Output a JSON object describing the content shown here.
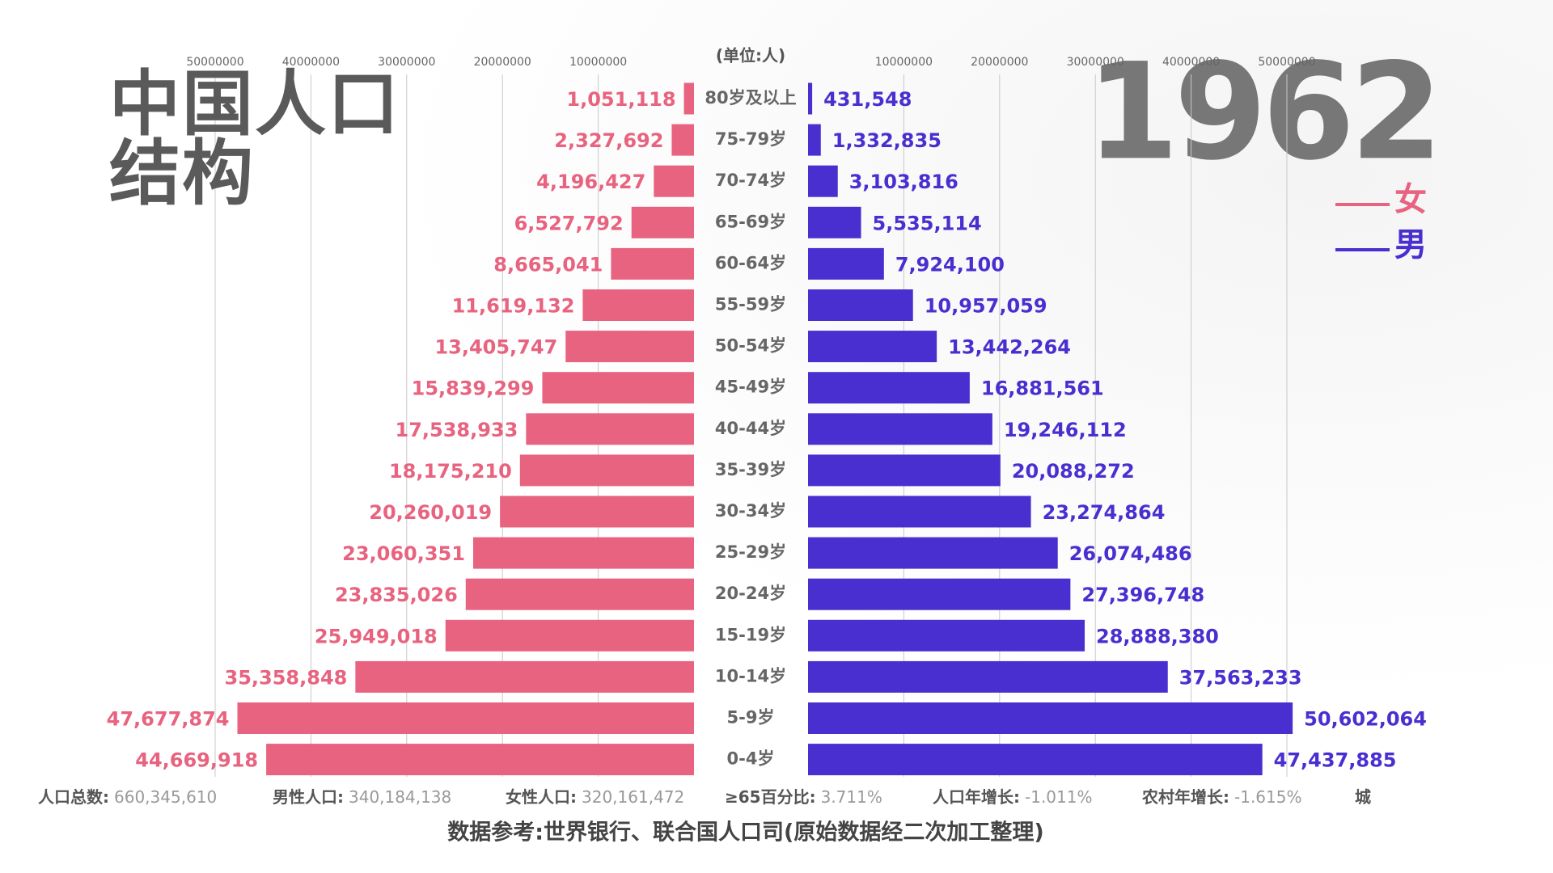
{
  "chart_data": {
    "type": "pyramid",
    "title": "中国人口结构",
    "year": "1962",
    "unit_label": "(单位:人)",
    "categories": [
      "80岁及以上",
      "75-79岁",
      "70-74岁",
      "65-69岁",
      "60-64岁",
      "55-59岁",
      "50-54岁",
      "45-49岁",
      "40-44岁",
      "35-39岁",
      "30-34岁",
      "25-29岁",
      "20-24岁",
      "15-19岁",
      "10-14岁",
      "5-9岁",
      "0-4岁"
    ],
    "series": [
      {
        "name": "女",
        "color": "#e8637f",
        "values": [
          1051118,
          2327692,
          4196427,
          6527792,
          8665041,
          11619132,
          13405747,
          15839299,
          17538933,
          18175210,
          20260019,
          23060351,
          23835026,
          25949018,
          35358848,
          47677874,
          44669918
        ],
        "value_labels": [
          "1,051,118",
          "2,327,692",
          "4,196,427",
          "6,527,792",
          "8,665,041",
          "11,619,132",
          "13,405,747",
          "15,839,299",
          "17,538,933",
          "18,175,210",
          "20,260,019",
          "23,060,351",
          "23,835,026",
          "25,949,018",
          "35,358,848",
          "47,677,874",
          "44,669,918"
        ]
      },
      {
        "name": "男",
        "color": "#4a2fd0",
        "values": [
          431548,
          1332835,
          3103816,
          5535114,
          7924100,
          10957059,
          13442264,
          16881561,
          19246112,
          20088272,
          23274864,
          26074486,
          27396748,
          28888380,
          37563233,
          50602064,
          47437885
        ],
        "value_labels": [
          "431,548",
          "1,332,835",
          "3,103,816",
          "5,535,114",
          "7,924,100",
          "10,957,059",
          "13,442,264",
          "16,881,561",
          "19,246,112",
          "20,088,272",
          "23,274,864",
          "26,074,486",
          "27,396,748",
          "28,888,380",
          "37,563,233",
          "50,602,064",
          "47,437,885"
        ]
      }
    ],
    "xlim": [
      0,
      50000000
    ],
    "xticks": [
      10000000,
      20000000,
      30000000,
      40000000,
      50000000
    ],
    "grid": true,
    "stats": [
      {
        "label": "人口总数:",
        "value": "660,345,610"
      },
      {
        "label": "男性人口:",
        "value": "340,184,138"
      },
      {
        "label": "女性人口:",
        "value": "320,161,472"
      },
      {
        "label": "≥65百分比:",
        "value": "3.711%"
      },
      {
        "label": "人口年增长:",
        "value": "-1.011%"
      },
      {
        "label": "农村年增长:",
        "value": "-1.615%"
      },
      {
        "label": "城"
      }
    ],
    "source": "数据参考:世界银行、联合国人口司(原始数据经二次加工整理)"
  }
}
